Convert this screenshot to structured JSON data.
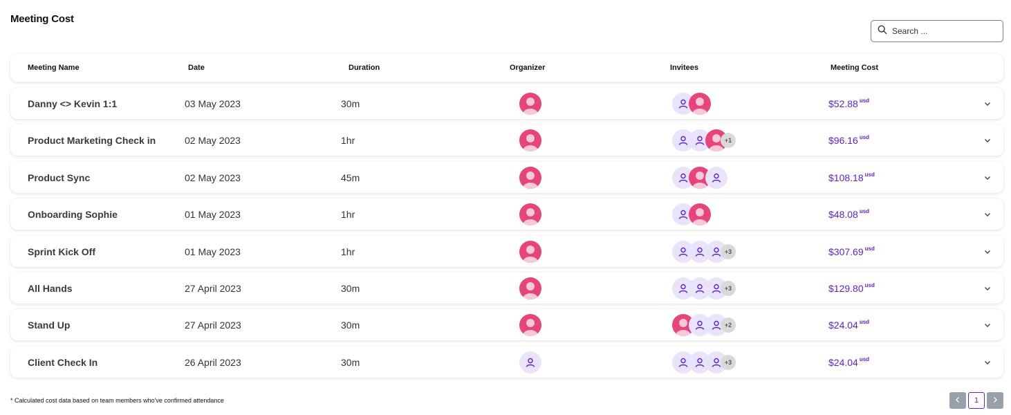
{
  "page": {
    "title": "Meeting Cost"
  },
  "search": {
    "placeholder": "Search ...",
    "icon": "search-icon"
  },
  "columns": {
    "name": "Meeting Name",
    "date": "Date",
    "duration": "Duration",
    "organizer": "Organizer",
    "invitees": "Invitees",
    "cost": "Meeting Cost"
  },
  "colors": {
    "accent": "#5a1fd6",
    "avatar_pink": "#e6447a",
    "avatar_light": "#e9e3fb",
    "more_badge": "#d9d9d9"
  },
  "currency_suffix": "usd",
  "meetings": [
    {
      "name": "Danny <> Kevin 1:1",
      "date": "03 May 2023",
      "duration": "30m",
      "organizer": "photo",
      "invitees": [
        "placeholder",
        "photo"
      ],
      "more": "",
      "cost": "$52.88"
    },
    {
      "name": "Product Marketing Check in",
      "date": "02 May 2023",
      "duration": "1hr",
      "organizer": "photo",
      "invitees": [
        "placeholder",
        "placeholder",
        "photo"
      ],
      "more": "+1",
      "cost": "$96.16"
    },
    {
      "name": "Product Sync",
      "date": "02 May 2023",
      "duration": "45m",
      "organizer": "photo",
      "invitees": [
        "placeholder",
        "photo",
        "placeholder"
      ],
      "more": "",
      "cost": "$108.18"
    },
    {
      "name": "Onboarding Sophie",
      "date": "01 May 2023",
      "duration": "1hr",
      "organizer": "photo",
      "invitees": [
        "placeholder",
        "photo"
      ],
      "more": "",
      "cost": "$48.08"
    },
    {
      "name": "Sprint Kick Off",
      "date": "01 May 2023",
      "duration": "1hr",
      "organizer": "photo",
      "invitees": [
        "placeholder",
        "placeholder",
        "placeholder"
      ],
      "more": "+3",
      "cost": "$307.69"
    },
    {
      "name": "All Hands",
      "date": "27 April 2023",
      "duration": "30m",
      "organizer": "photo",
      "invitees": [
        "placeholder",
        "placeholder",
        "placeholder"
      ],
      "more": "+3",
      "cost": "$129.80"
    },
    {
      "name": "Stand Up",
      "date": "27 April 2023",
      "duration": "30m",
      "organizer": "photo",
      "invitees": [
        "photo",
        "placeholder",
        "placeholder"
      ],
      "more": "+2",
      "cost": "$24.04"
    },
    {
      "name": "Client Check In",
      "date": "26 April 2023",
      "duration": "30m",
      "organizer": "placeholder",
      "invitees": [
        "placeholder",
        "placeholder",
        "placeholder"
      ],
      "more": "+3",
      "cost": "$24.04"
    }
  ],
  "footnote": "* Calculated cost data based on team members who've confirmed attendance",
  "pagination": {
    "current_page": "1",
    "prev_icon": "chevron-left-icon",
    "next_icon": "chevron-right-icon"
  }
}
